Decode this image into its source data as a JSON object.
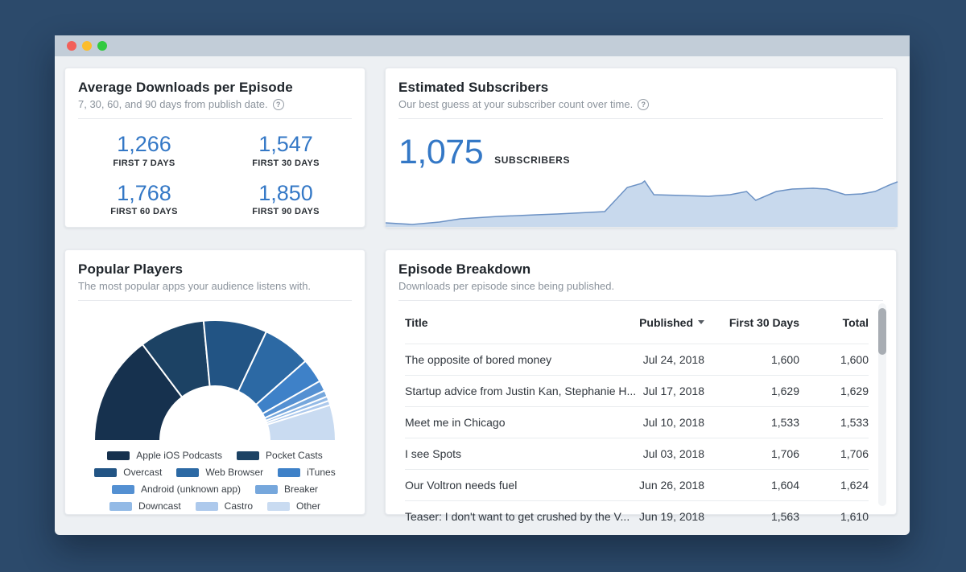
{
  "avg_downloads": {
    "title": "Average Downloads per Episode",
    "subtitle": "7, 30, 60, and 90 days from publish date.",
    "help_icon": "?",
    "stats": [
      {
        "value": "1,266",
        "label": "FIRST 7 DAYS"
      },
      {
        "value": "1,547",
        "label": "FIRST 30 DAYS"
      },
      {
        "value": "1,768",
        "label": "FIRST 60 DAYS"
      },
      {
        "value": "1,850",
        "label": "FIRST 90 DAYS"
      }
    ]
  },
  "subscribers": {
    "title": "Estimated Subscribers",
    "subtitle": "Our best guess at your subscriber count over time.",
    "help_icon": "?",
    "count": "1,075",
    "count_label": "SUBSCRIBERS"
  },
  "players": {
    "title": "Popular Players",
    "subtitle": "The most popular apps your audience listens with."
  },
  "episodes": {
    "title": "Episode Breakdown",
    "subtitle": "Downloads per episode since being published.",
    "headers": {
      "title": "Title",
      "published": "Published",
      "first30": "First 30 Days",
      "total": "Total"
    },
    "sorted_by": "published",
    "rows": [
      {
        "title": "The opposite of bored money",
        "published": "Jul 24, 2018",
        "first30": "1,600",
        "total": "1,600"
      },
      {
        "title": "Startup advice from Justin Kan, Stephanie H...",
        "published": "Jul 17, 2018",
        "first30": "1,629",
        "total": "1,629"
      },
      {
        "title": "Meet me in Chicago",
        "published": "Jul 10, 2018",
        "first30": "1,533",
        "total": "1,533"
      },
      {
        "title": "I see Spots",
        "published": "Jul 03, 2018",
        "first30": "1,706",
        "total": "1,706"
      },
      {
        "title": "Our Voltron needs fuel",
        "published": "Jun 26, 2018",
        "first30": "1,604",
        "total": "1,624"
      },
      {
        "title": "Teaser: I don't want to get crushed by the V...",
        "published": "Jun 19, 2018",
        "first30": "1,563",
        "total": "1,610"
      }
    ]
  },
  "colors": {
    "accent_blue": "#3478c6",
    "page_bg": "#2c4a6b",
    "titlebar_bg": "#c2cdd8",
    "area_fill": "#c8d9ed",
    "area_stroke": "#6b91c4"
  },
  "chart_data": [
    {
      "type": "area",
      "title": "Estimated Subscribers",
      "axis_labels": "none shown",
      "current_value": 1075,
      "series": [
        {
          "name": "Subscribers",
          "points_norm": [
            [
              0.0,
              0.943
            ],
            [
              0.052,
              0.966
            ],
            [
              0.105,
              0.931
            ],
            [
              0.146,
              0.885
            ],
            [
              0.22,
              0.851
            ],
            [
              0.294,
              0.828
            ],
            [
              0.335,
              0.816
            ],
            [
              0.398,
              0.793
            ],
            [
              0.428,
              0.782
            ],
            [
              0.472,
              0.437
            ],
            [
              0.5,
              0.379
            ],
            [
              0.506,
              0.345
            ],
            [
              0.524,
              0.54
            ],
            [
              0.579,
              0.552
            ],
            [
              0.631,
              0.563
            ],
            [
              0.673,
              0.54
            ],
            [
              0.705,
              0.494
            ],
            [
              0.723,
              0.621
            ],
            [
              0.763,
              0.494
            ],
            [
              0.794,
              0.46
            ],
            [
              0.835,
              0.448
            ],
            [
              0.862,
              0.46
            ],
            [
              0.898,
              0.54
            ],
            [
              0.93,
              0.529
            ],
            [
              0.956,
              0.494
            ],
            [
              0.983,
              0.405
            ],
            [
              1.0,
              0.356
            ]
          ]
        }
      ]
    },
    {
      "type": "pie",
      "variant": "half-donut",
      "title": "Popular Players",
      "categories": [
        "Apple iOS Podcasts",
        "Pocket Casts",
        "Overcast",
        "Web Browser",
        "iTunes",
        "Android (unknown app)",
        "Breaker",
        "Downcast",
        "Castro",
        "Other"
      ],
      "values": [
        29.5,
        17.5,
        17.0,
        13.0,
        6.5,
        2.8,
        1.7,
        1.2,
        1.2,
        9.6
      ],
      "unit": "percent (estimated from arc angles)",
      "colors": [
        "#16314e",
        "#1c4264",
        "#225484",
        "#2c69a4",
        "#3e81c8",
        "#5490d2",
        "#76a7dc",
        "#93bae6",
        "#adc9ec",
        "#c9dbf1"
      ],
      "legend_rows": [
        [
          0,
          1
        ],
        [
          2,
          3,
          4
        ],
        [
          5,
          6
        ],
        [
          7,
          8,
          9
        ]
      ]
    },
    {
      "type": "table",
      "title": "Episode Breakdown",
      "columns": [
        "Title",
        "Published",
        "First 30 Days",
        "Total"
      ],
      "rows": [
        [
          "The opposite of bored money",
          "Jul 24, 2018",
          1600,
          1600
        ],
        [
          "Startup advice from Justin Kan, Stephanie H...",
          "Jul 17, 2018",
          1629,
          1629
        ],
        [
          "Meet me in Chicago",
          "Jul 10, 2018",
          1533,
          1533
        ],
        [
          "I see Spots",
          "Jul 03, 2018",
          1706,
          1706
        ],
        [
          "Our Voltron needs fuel",
          "Jun 26, 2018",
          1604,
          1624
        ],
        [
          "Teaser: I don't want to get crushed by the V...",
          "Jun 19, 2018",
          1563,
          1610
        ]
      ]
    }
  ]
}
